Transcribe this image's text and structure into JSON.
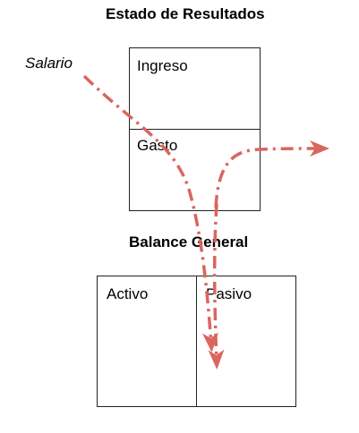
{
  "income_statement": {
    "title": "Estado de Resultados",
    "revenue_label": "Ingreso",
    "expense_label": "Gasto"
  },
  "balance_sheet": {
    "title": "Balance General",
    "assets_label": "Activo",
    "liabilities_label": "Pasivo"
  },
  "flow": {
    "source_label": "Salario",
    "color": "#d9665f"
  }
}
